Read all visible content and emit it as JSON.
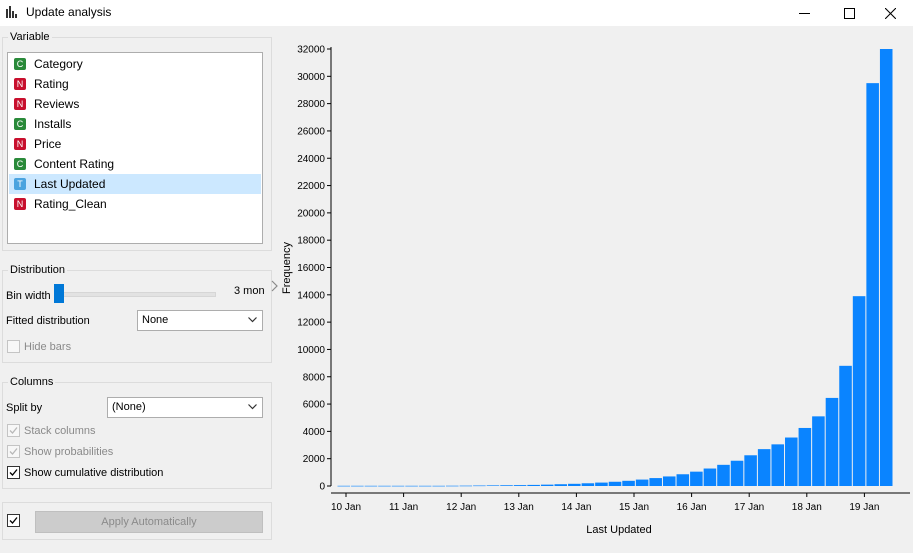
{
  "window": {
    "title": "Update analysis"
  },
  "variable_panel": {
    "title": "Variable",
    "items": [
      {
        "type": "C",
        "label": "Category",
        "color": "#2a8a3a",
        "selected": false
      },
      {
        "type": "N",
        "label": "Rating",
        "color": "#c8102e",
        "selected": false
      },
      {
        "type": "N",
        "label": "Reviews",
        "color": "#c8102e",
        "selected": false
      },
      {
        "type": "C",
        "label": "Installs",
        "color": "#2a8a3a",
        "selected": false
      },
      {
        "type": "N",
        "label": "Price",
        "color": "#c8102e",
        "selected": false
      },
      {
        "type": "C",
        "label": "Content Rating",
        "color": "#2a8a3a",
        "selected": false
      },
      {
        "type": "T",
        "label": "Last Updated",
        "color": "#4aa3df",
        "selected": true
      },
      {
        "type": "N",
        "label": "Rating_Clean",
        "color": "#c8102e",
        "selected": false
      }
    ]
  },
  "distribution": {
    "title": "Distribution",
    "bin_width_label": "Bin width",
    "bin_width_value": "3 mon",
    "bin_width_slider_fraction": 0.0,
    "fitted_label": "Fitted distribution",
    "fitted_value": "None",
    "hide_bars_label": "Hide bars",
    "hide_bars_checked": false
  },
  "columns": {
    "title": "Columns",
    "split_by_label": "Split by",
    "split_by_value": "(None)",
    "stack_columns_label": "Stack columns",
    "stack_columns_checked": true,
    "show_probabilities_label": "Show probabilities",
    "show_probabilities_checked": true,
    "show_cumulative_label": "Show cumulative distribution",
    "show_cumulative_checked": true
  },
  "footer": {
    "apply_checked": true,
    "apply_label": "Apply Automatically"
  },
  "chart_data": {
    "type": "bar",
    "xlabel": "Last Updated",
    "ylabel": "Frequency",
    "ylim": [
      0,
      32000
    ],
    "y_ticks": [
      0,
      2000,
      4000,
      6000,
      8000,
      10000,
      12000,
      14000,
      16000,
      18000,
      20000,
      22000,
      24000,
      26000,
      28000,
      30000,
      32000
    ],
    "x_tick_labels": [
      "10 Jan",
      "11 Jan",
      "12 Jan",
      "13 Jan",
      "14 Jan",
      "15 Jan",
      "16 Jan",
      "17 Jan",
      "18 Jan",
      "19 Jan"
    ],
    "color": "#0a84ff",
    "values": [
      15,
      15,
      15,
      15,
      15,
      15,
      15,
      15,
      20,
      25,
      35,
      45,
      55,
      65,
      80,
      100,
      130,
      160,
      200,
      250,
      310,
      380,
      470,
      580,
      700,
      860,
      1050,
      1280,
      1550,
      1850,
      2250,
      2700,
      3050,
      3550,
      4250,
      5100,
      6450,
      8800,
      13900,
      29500,
      32000
    ],
    "grid": false,
    "legend": "none"
  }
}
